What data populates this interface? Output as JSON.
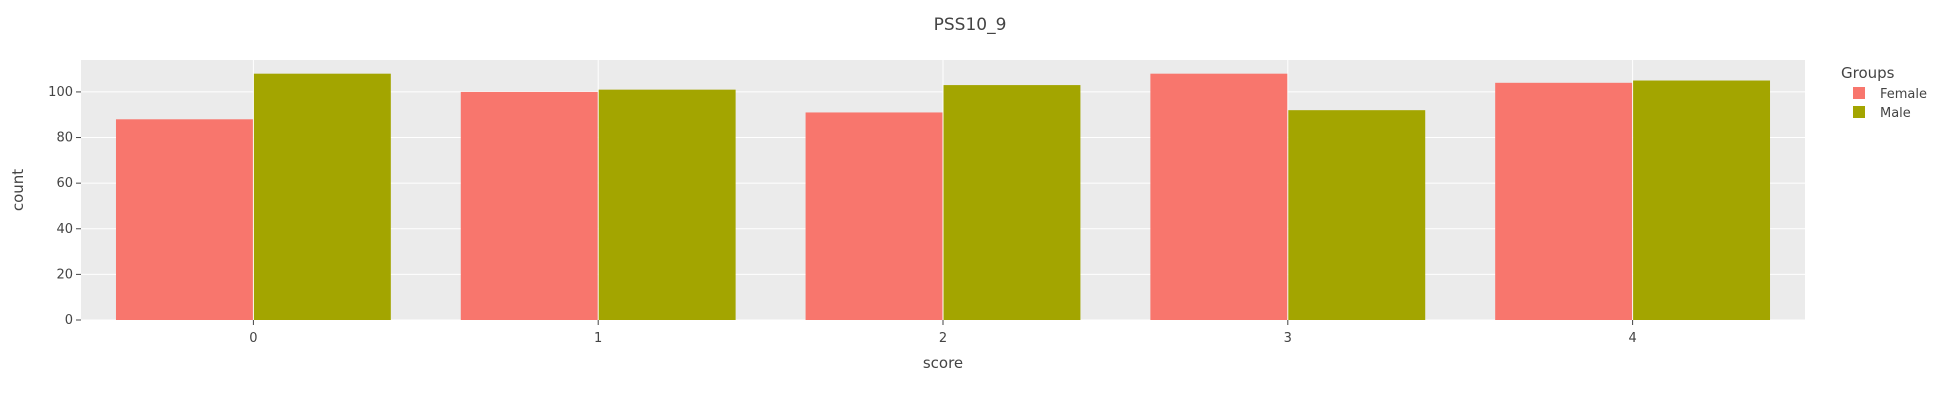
{
  "chart_data": {
    "type": "bar",
    "title": "PSS10_9",
    "xlabel": "score",
    "ylabel": "count",
    "categories": [
      "0",
      "1",
      "2",
      "3",
      "4"
    ],
    "series": [
      {
        "name": "Female",
        "values": [
          88,
          100,
          91,
          108,
          104
        ],
        "color": "#F8766D"
      },
      {
        "name": "Male",
        "values": [
          108,
          101,
          103,
          92,
          105
        ],
        "color": "#A3A500"
      }
    ],
    "ylim": [
      0,
      114
    ],
    "yticks": [
      0,
      20,
      40,
      60,
      80,
      100
    ],
    "grid": true,
    "legend": {
      "title": "Groups",
      "placement": "right"
    },
    "colors": {
      "plot_background": "#EBEBEB",
      "grid": "#FFFFFF",
      "text": "#444444"
    }
  }
}
